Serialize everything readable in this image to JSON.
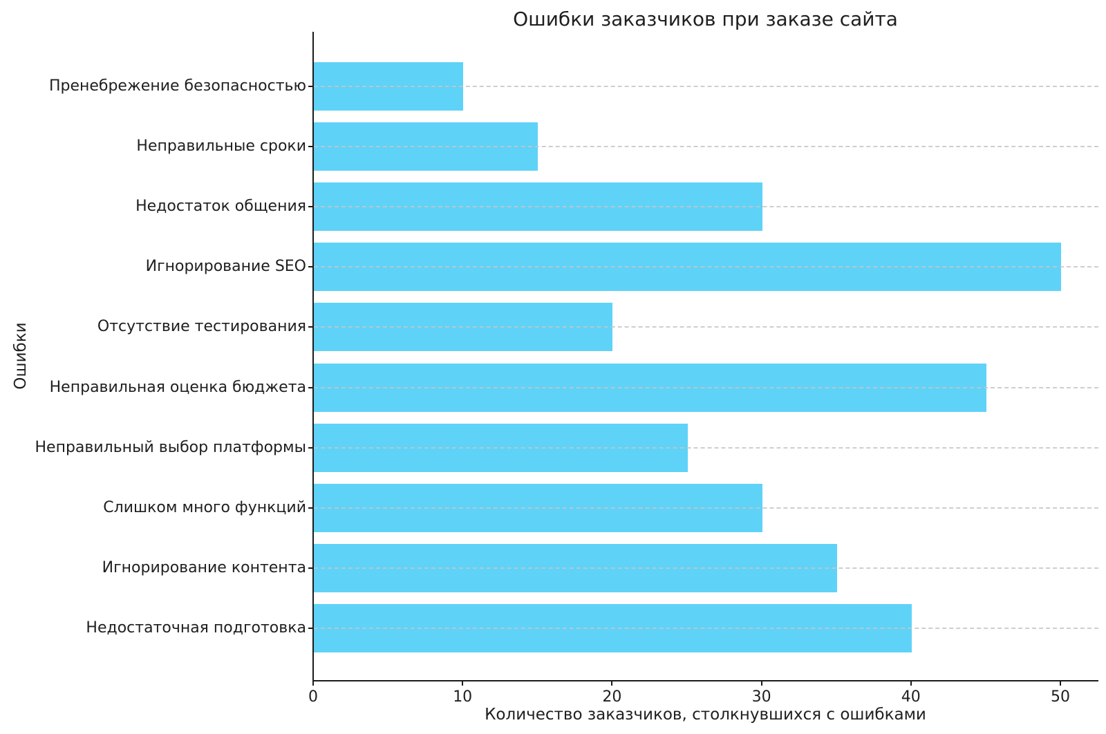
{
  "chart_data": {
    "type": "bar",
    "orientation": "horizontal",
    "title": "Ошибки заказчиков при заказе сайта",
    "xlabel": "Количество заказчиков, столкнувшихся с ошибками",
    "ylabel": "Ошибки",
    "categories_order": "top-to-bottom",
    "categories": [
      "Пренебрежение безопасностью",
      "Неправильные сроки",
      "Недостаток общения",
      "Игнорирование SEO",
      "Отсутствие тестирования",
      "Неправильная оценка бюджета",
      "Неправильный выбор платформы",
      "Слишком много функций",
      "Игнорирование контента",
      "Недостаточная подготовка"
    ],
    "values": [
      10,
      15,
      30,
      50,
      20,
      45,
      25,
      30,
      35,
      40
    ],
    "x_ticks": [
      0,
      10,
      20,
      30,
      40,
      50
    ],
    "x_tick_labels": [
      "0",
      "10",
      "20",
      "30",
      "40",
      "50"
    ],
    "xlim": [
      0,
      52.5
    ],
    "grid": {
      "axis": "y",
      "style": "dashed",
      "color": "#c6c6c6"
    },
    "legend": null,
    "colors": {
      "bar": "#5FD2F7",
      "text": "#1f1f1f",
      "spine": "#1a1a1a"
    }
  }
}
